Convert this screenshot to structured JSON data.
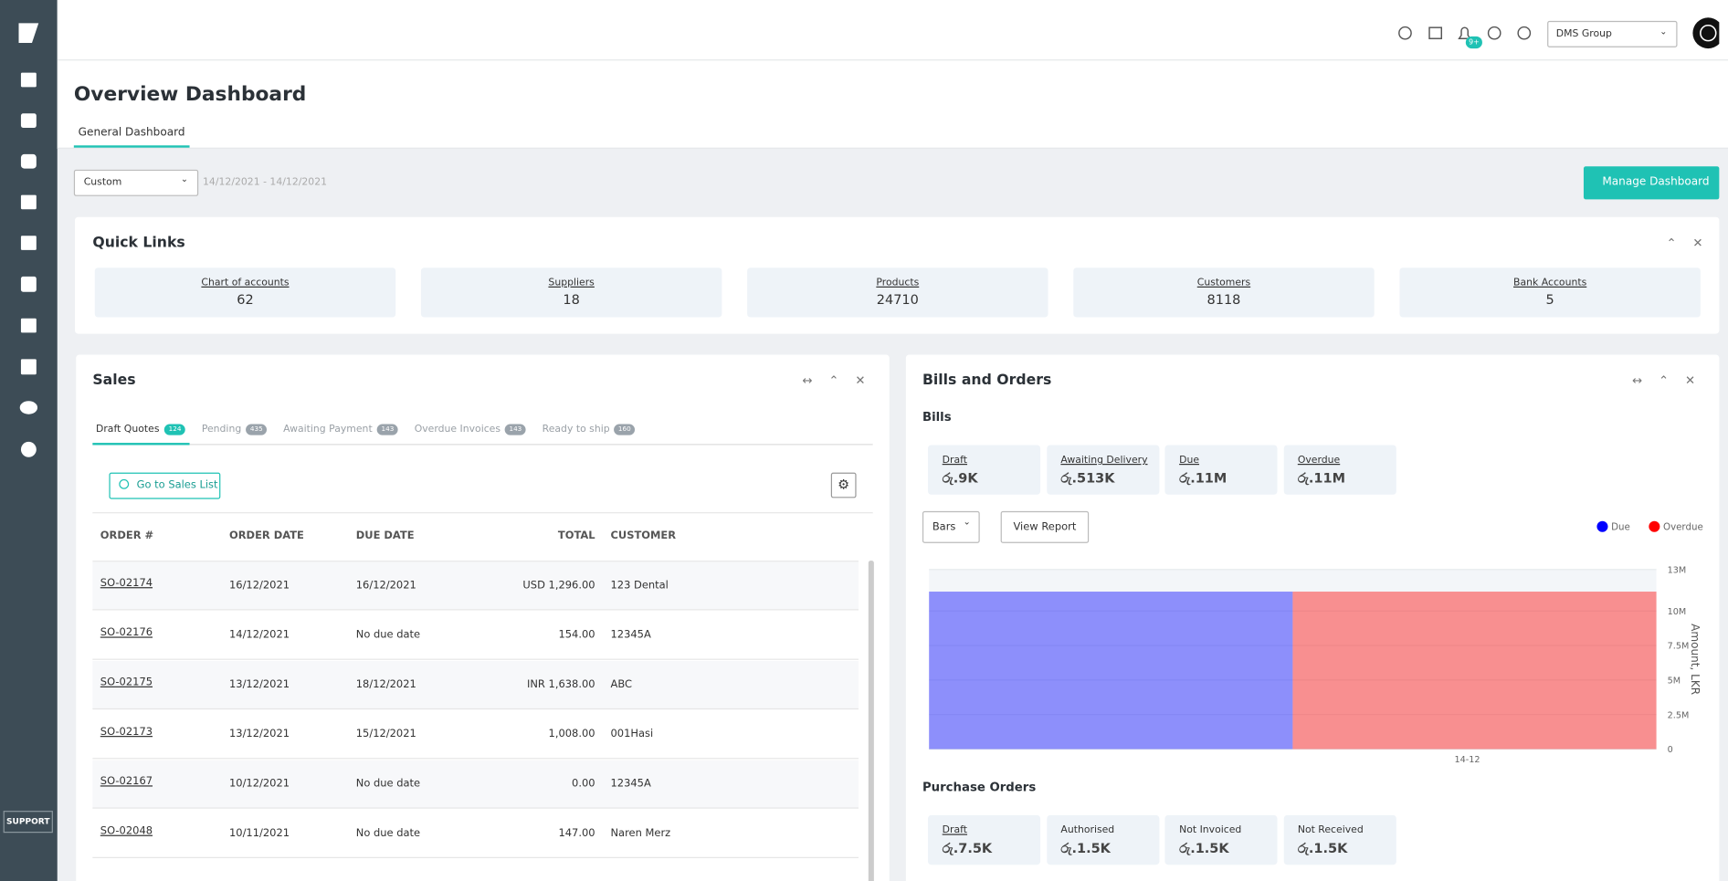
{
  "topbar": {
    "notifications": "9+",
    "org": "DMS Group"
  },
  "sidebar": {
    "support": "SUPPORT"
  },
  "header": {
    "title": "Overview Dashboard",
    "tab": "General Dashboard"
  },
  "filters": {
    "range": "Custom",
    "dates": "14/12/2021 - 14/12/2021",
    "manage": "Manage Dashboard"
  },
  "quick_links": {
    "title": "Quick Links",
    "items": [
      {
        "label": "Chart of accounts",
        "value": 62
      },
      {
        "label": "Suppliers",
        "value": 18
      },
      {
        "label": "Products",
        "value": 24710
      },
      {
        "label": "Customers",
        "value": 8118
      },
      {
        "label": "Bank Accounts",
        "value": 5
      }
    ]
  },
  "sales": {
    "title": "Sales",
    "tabs": [
      {
        "label": "Draft Quotes",
        "count": 124
      },
      {
        "label": "Pending",
        "count": 435
      },
      {
        "label": "Awaiting Payment",
        "count": 143
      },
      {
        "label": "Overdue Invoices",
        "count": 143
      },
      {
        "label": "Ready to ship",
        "count": 160
      }
    ],
    "button": "Go to Sales List",
    "columns": [
      "ORDER #",
      "ORDER DATE",
      "DUE DATE",
      "TOTAL",
      "CUSTOMER"
    ],
    "rows": [
      [
        "SO-02174",
        "16/12/2021",
        "16/12/2021",
        "USD 1,296.00",
        "123 Dental"
      ],
      [
        "SO-02176",
        "14/12/2021",
        "No due date",
        "154.00",
        "12345A"
      ],
      [
        "SO-02175",
        "13/12/2021",
        "18/12/2021",
        "INR 1,638.00",
        "ABC"
      ],
      [
        "SO-02173",
        "13/12/2021",
        "15/12/2021",
        "1,008.00",
        "001Hasi"
      ],
      [
        "SO-02167",
        "10/12/2021",
        "No due date",
        "0.00",
        "12345A"
      ],
      [
        "SO-02048",
        "10/11/2021",
        "No due date",
        "147.00",
        "Naren Merz"
      ]
    ]
  },
  "bills_orders": {
    "title": "Bills and Orders",
    "bills_title": "Bills",
    "bills": [
      {
        "label": "Draft",
        "value": "රු.9K"
      },
      {
        "label": "Awaiting Delivery",
        "value": "රු.513K"
      },
      {
        "label": "Due",
        "value": "රු.11M"
      },
      {
        "label": "Overdue",
        "value": "රු.11M"
      }
    ],
    "view": "Bars",
    "report": "View Report",
    "po_title": "Purchase Orders",
    "orders": [
      {
        "label": "Draft",
        "value": "රු.7.5K"
      },
      {
        "label": "Authorised",
        "value": "රු.1.5K"
      },
      {
        "label": "Not Invoiced",
        "value": "රු.1.5K"
      },
      {
        "label": "Not Received",
        "value": "රු.1.5K"
      }
    ]
  },
  "chart_data": {
    "type": "bar",
    "categories": [
      "14-12"
    ],
    "y_label": "Amount, LKR",
    "series": [
      {
        "name": "Due",
        "color": "#0000ff",
        "values": [
          11400000
        ]
      },
      {
        "name": "Overdue",
        "color": "#ff0000",
        "values": [
          11400000
        ]
      }
    ],
    "ylim": [
      0,
      13000000
    ],
    "yticks": [
      0,
      {
        "value": 2500000,
        "label": "2.5M"
      },
      {
        "value": 5000000,
        "label": "5M"
      },
      {
        "value": 7500000,
        "label": "7.5M"
      },
      {
        "value": 10000000,
        "label": "10M"
      },
      {
        "value": 13000000,
        "label": "13M"
      }
    ],
    "grid": true,
    "legend": "top-right"
  }
}
